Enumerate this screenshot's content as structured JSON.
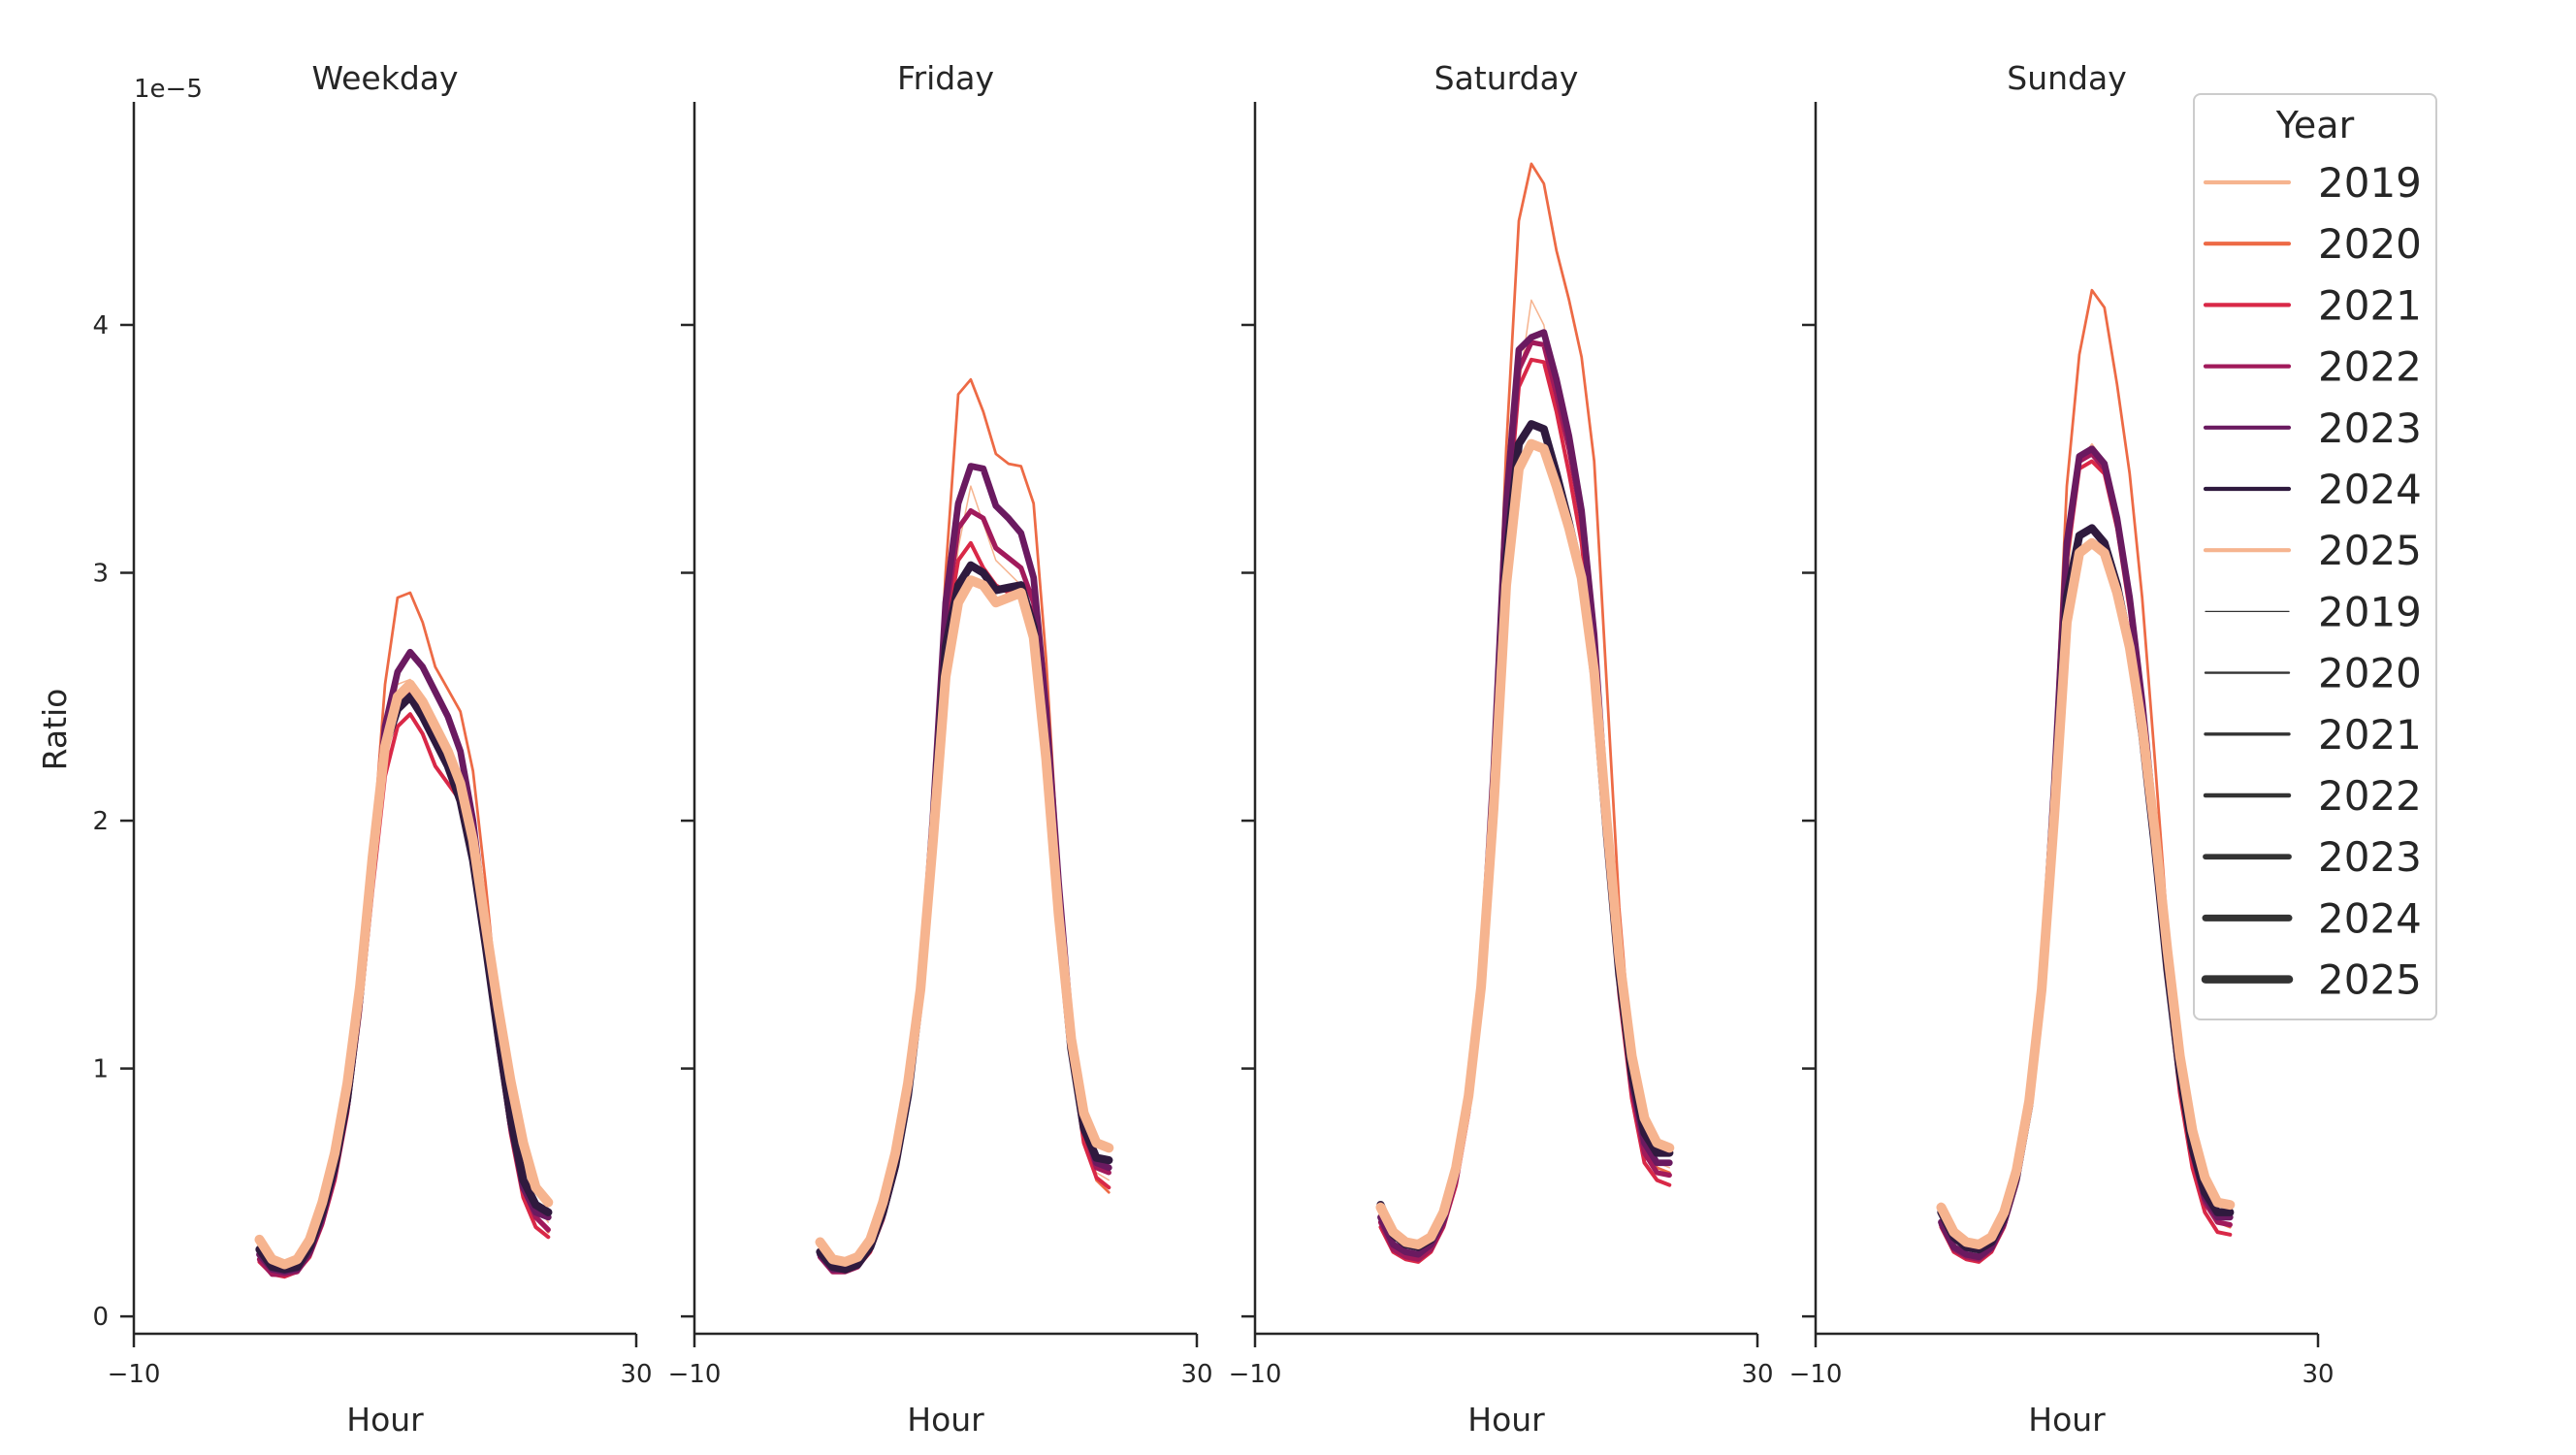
{
  "chart_data": {
    "type": "line",
    "ylabel": "Ratio",
    "xlabel": "Hour",
    "y_offset_label": "1e−5",
    "y_scale": 1e-05,
    "xlim": [
      -10,
      30
    ],
    "ylim": [
      -0.07,
      4.9
    ],
    "xticks": [
      -10,
      30
    ],
    "xtick_labels": [
      "−10",
      "30"
    ],
    "yticks": [
      0,
      1,
      2,
      3,
      4
    ],
    "ytick_labels": [
      "0",
      "1",
      "2",
      "3",
      "4"
    ],
    "hours": [
      0,
      1,
      2,
      3,
      4,
      5,
      6,
      7,
      8,
      9,
      10,
      11,
      12,
      13,
      14,
      15,
      16,
      17,
      18,
      19,
      20,
      21,
      22,
      23
    ],
    "legend": {
      "title": "Year",
      "placement": "right",
      "color_entries": [
        {
          "label": "2019",
          "color": "#f6b48f"
        },
        {
          "label": "2020",
          "color": "#ed6a45"
        },
        {
          "label": "2021",
          "color": "#d92847"
        },
        {
          "label": "2022",
          "color": "#a11a5b"
        },
        {
          "label": "2023",
          "color": "#6a1a60"
        },
        {
          "label": "2024",
          "color": "#2f1a3e"
        },
        {
          "label": "2025",
          "color": "#f6b48f"
        }
      ],
      "size_entries": [
        {
          "label": "2019",
          "width": 1.2
        },
        {
          "label": "2020",
          "width": 2.2
        },
        {
          "label": "2021",
          "width": 3.2
        },
        {
          "label": "2022",
          "width": 4.2
        },
        {
          "label": "2023",
          "width": 5.4
        },
        {
          "label": "2024",
          "width": 6.6
        },
        {
          "label": "2025",
          "width": 8.0
        }
      ]
    },
    "panels": [
      {
        "title": "Weekday",
        "series": [
          {
            "name": "2019",
            "color": "#f6b48f",
            "width": 1.2,
            "values": [
              0.3,
              0.22,
              0.2,
              0.22,
              0.3,
              0.45,
              0.65,
              0.92,
              1.3,
              1.8,
              2.28,
              2.55,
              2.57,
              2.5,
              2.4,
              2.3,
              2.15,
              1.9,
              1.55,
              1.2,
              0.9,
              0.62,
              0.45,
              0.38
            ]
          },
          {
            "name": "2020",
            "color": "#ed6a45",
            "width": 2.2,
            "values": [
              0.26,
              0.19,
              0.18,
              0.2,
              0.27,
              0.41,
              0.6,
              0.88,
              1.28,
              1.88,
              2.55,
              2.9,
              2.92,
              2.8,
              2.62,
              2.53,
              2.44,
              2.2,
              1.75,
              1.25,
              0.85,
              0.55,
              0.4,
              0.34
            ]
          },
          {
            "name": "2021",
            "color": "#d92847",
            "width": 3.2,
            "values": [
              0.22,
              0.17,
              0.16,
              0.18,
              0.24,
              0.37,
              0.55,
              0.82,
              1.22,
              1.72,
              2.18,
              2.38,
              2.43,
              2.35,
              2.22,
              2.15,
              2.08,
              1.88,
              1.5,
              1.1,
              0.74,
              0.48,
              0.36,
              0.32
            ]
          },
          {
            "name": "2022",
            "color": "#a11a5b",
            "width": 4.2,
            "values": [
              0.23,
              0.17,
              0.17,
              0.18,
              0.25,
              0.38,
              0.57,
              0.84,
              1.25,
              1.78,
              2.28,
              2.48,
              2.52,
              2.45,
              2.35,
              2.25,
              2.12,
              1.88,
              1.5,
              1.1,
              0.76,
              0.52,
              0.4,
              0.35
            ]
          },
          {
            "name": "2023",
            "color": "#6a1a60",
            "width": 5.4,
            "values": [
              0.25,
              0.19,
              0.18,
              0.19,
              0.26,
              0.4,
              0.59,
              0.86,
              1.28,
              1.83,
              2.38,
              2.6,
              2.68,
              2.62,
              2.52,
              2.42,
              2.28,
              2.0,
              1.58,
              1.14,
              0.78,
              0.52,
              0.42,
              0.4
            ]
          },
          {
            "name": "2024",
            "color": "#2f1a3e",
            "width": 6.6,
            "values": [
              0.27,
              0.2,
              0.19,
              0.2,
              0.28,
              0.42,
              0.61,
              0.88,
              1.3,
              1.82,
              2.3,
              2.45,
              2.5,
              2.42,
              2.32,
              2.22,
              2.08,
              1.84,
              1.5,
              1.14,
              0.8,
              0.55,
              0.45,
              0.42
            ]
          },
          {
            "name": "2025",
            "color": "#f6b48f",
            "width": 8.0,
            "values": [
              0.31,
              0.23,
              0.21,
              0.23,
              0.31,
              0.46,
              0.66,
              0.94,
              1.33,
              1.85,
              2.3,
              2.5,
              2.55,
              2.48,
              2.38,
              2.28,
              2.15,
              1.92,
              1.58,
              1.25,
              0.95,
              0.7,
              0.52,
              0.46
            ]
          }
        ]
      },
      {
        "title": "Friday",
        "series": [
          {
            "name": "2019",
            "color": "#f6b48f",
            "width": 1.2,
            "values": [
              0.3,
              0.22,
              0.21,
              0.23,
              0.3,
              0.45,
              0.65,
              0.92,
              1.3,
              1.9,
              2.6,
              3.1,
              3.35,
              3.2,
              3.05,
              3.0,
              2.95,
              2.7,
              2.2,
              1.55,
              1.05,
              0.7,
              0.58,
              0.55
            ]
          },
          {
            "name": "2020",
            "color": "#ed6a45",
            "width": 2.2,
            "values": [
              0.27,
              0.2,
              0.19,
              0.21,
              0.28,
              0.42,
              0.62,
              0.9,
              1.32,
              2.05,
              3.0,
              3.72,
              3.78,
              3.65,
              3.48,
              3.44,
              3.43,
              3.28,
              2.65,
              1.82,
              1.15,
              0.75,
              0.55,
              0.5
            ]
          },
          {
            "name": "2021",
            "color": "#d92847",
            "width": 3.2,
            "values": [
              0.24,
              0.18,
              0.18,
              0.2,
              0.26,
              0.39,
              0.58,
              0.86,
              1.28,
              1.95,
              2.75,
              3.05,
              3.12,
              3.02,
              2.95,
              2.92,
              2.95,
              2.8,
              2.3,
              1.62,
              1.05,
              0.7,
              0.56,
              0.52
            ]
          },
          {
            "name": "2022",
            "color": "#a11a5b",
            "width": 4.2,
            "values": [
              0.24,
              0.18,
              0.18,
              0.2,
              0.27,
              0.4,
              0.59,
              0.87,
              1.3,
              1.98,
              2.82,
              3.18,
              3.25,
              3.22,
              3.1,
              3.06,
              3.02,
              2.88,
              2.38,
              1.7,
              1.1,
              0.75,
              0.6,
              0.58
            ]
          },
          {
            "name": "2023",
            "color": "#6a1a60",
            "width": 5.4,
            "values": [
              0.25,
              0.19,
              0.19,
              0.21,
              0.28,
              0.41,
              0.6,
              0.88,
              1.32,
              2.02,
              2.88,
              3.28,
              3.43,
              3.42,
              3.27,
              3.22,
              3.16,
              2.98,
              2.45,
              1.75,
              1.15,
              0.78,
              0.62,
              0.6
            ]
          },
          {
            "name": "2024",
            "color": "#2f1a3e",
            "width": 6.6,
            "values": [
              0.26,
              0.2,
              0.19,
              0.21,
              0.28,
              0.42,
              0.61,
              0.89,
              1.31,
              1.96,
              2.7,
              2.95,
              3.03,
              3.0,
              2.93,
              2.94,
              2.95,
              2.78,
              2.28,
              1.62,
              1.08,
              0.76,
              0.64,
              0.63
            ]
          },
          {
            "name": "2025",
            "color": "#f6b48f",
            "width": 8.0,
            "values": [
              0.3,
              0.23,
              0.22,
              0.24,
              0.31,
              0.46,
              0.66,
              0.94,
              1.32,
              1.92,
              2.58,
              2.88,
              2.97,
              2.95,
              2.88,
              2.9,
              2.92,
              2.74,
              2.25,
              1.62,
              1.12,
              0.82,
              0.7,
              0.68
            ]
          }
        ]
      },
      {
        "title": "Saturday",
        "series": [
          {
            "name": "2019",
            "color": "#f6b48f",
            "width": 1.2,
            "values": [
              0.42,
              0.32,
              0.28,
              0.28,
              0.32,
              0.42,
              0.6,
              0.9,
              1.35,
              2.1,
              3.1,
              3.75,
              4.1,
              4.0,
              3.7,
              3.4,
              3.1,
              2.6,
              1.95,
              1.35,
              0.95,
              0.72,
              0.62,
              0.6
            ]
          },
          {
            "name": "2020",
            "color": "#ed6a45",
            "width": 2.2,
            "values": [
              0.38,
              0.28,
              0.25,
              0.24,
              0.28,
              0.38,
              0.56,
              0.86,
              1.35,
              2.25,
              3.5,
              4.42,
              4.65,
              4.57,
              4.3,
              4.1,
              3.87,
              3.45,
              2.55,
              1.65,
              1.05,
              0.72,
              0.6,
              0.58
            ]
          },
          {
            "name": "2021",
            "color": "#d92847",
            "width": 3.2,
            "values": [
              0.36,
              0.26,
              0.23,
              0.22,
              0.26,
              0.36,
              0.53,
              0.82,
              1.3,
              2.1,
              3.15,
              3.75,
              3.86,
              3.85,
              3.65,
              3.4,
              3.12,
              2.65,
              1.95,
              1.3,
              0.88,
              0.62,
              0.55,
              0.53
            ]
          },
          {
            "name": "2022",
            "color": "#a11a5b",
            "width": 4.2,
            "values": [
              0.38,
              0.27,
              0.24,
              0.23,
              0.27,
              0.37,
              0.55,
              0.84,
              1.32,
              2.15,
              3.22,
              3.82,
              3.93,
              3.92,
              3.72,
              3.5,
              3.22,
              2.72,
              2.0,
              1.35,
              0.92,
              0.66,
              0.58,
              0.57
            ]
          },
          {
            "name": "2023",
            "color": "#6a1a60",
            "width": 5.4,
            "values": [
              0.4,
              0.29,
              0.26,
              0.25,
              0.29,
              0.39,
              0.57,
              0.86,
              1.35,
              2.2,
              3.28,
              3.9,
              3.95,
              3.97,
              3.78,
              3.55,
              3.25,
              2.75,
              2.02,
              1.38,
              0.95,
              0.7,
              0.62,
              0.62
            ]
          },
          {
            "name": "2024",
            "color": "#2f1a3e",
            "width": 6.6,
            "values": [
              0.45,
              0.33,
              0.29,
              0.28,
              0.31,
              0.41,
              0.59,
              0.88,
              1.34,
              2.1,
              3.05,
              3.52,
              3.6,
              3.58,
              3.4,
              3.2,
              2.98,
              2.58,
              1.95,
              1.38,
              0.98,
              0.74,
              0.66,
              0.66
            ]
          },
          {
            "name": "2025",
            "color": "#f6b48f",
            "width": 8.0,
            "values": [
              0.44,
              0.34,
              0.3,
              0.29,
              0.32,
              0.42,
              0.6,
              0.89,
              1.33,
              2.05,
              2.95,
              3.42,
              3.52,
              3.5,
              3.35,
              3.18,
              2.98,
              2.6,
              2.0,
              1.45,
              1.05,
              0.8,
              0.7,
              0.68
            ]
          }
        ]
      },
      {
        "title": "Sunday",
        "series": [
          {
            "name": "2019",
            "color": "#f6b48f",
            "width": 1.2,
            "values": [
              0.44,
              0.33,
              0.28,
              0.27,
              0.31,
              0.41,
              0.58,
              0.86,
              1.32,
              2.05,
              2.95,
              3.45,
              3.52,
              3.45,
              3.25,
              2.95,
              2.55,
              2.05,
              1.5,
              1.05,
              0.72,
              0.52,
              0.42,
              0.4
            ]
          },
          {
            "name": "2020",
            "color": "#ed6a45",
            "width": 2.2,
            "values": [
              0.4,
              0.29,
              0.25,
              0.24,
              0.28,
              0.38,
              0.55,
              0.84,
              1.35,
              2.25,
              3.35,
              3.88,
              4.14,
              4.07,
              3.76,
              3.4,
              2.9,
              2.25,
              1.58,
              1.05,
              0.7,
              0.48,
              0.38,
              0.36
            ]
          },
          {
            "name": "2021",
            "color": "#d92847",
            "width": 3.2,
            "values": [
              0.36,
              0.26,
              0.23,
              0.22,
              0.26,
              0.36,
              0.53,
              0.82,
              1.3,
              2.1,
              3.05,
              3.42,
              3.45,
              3.4,
              3.18,
              2.85,
              2.42,
              1.9,
              1.35,
              0.9,
              0.6,
              0.42,
              0.34,
              0.33
            ]
          },
          {
            "name": "2022",
            "color": "#a11a5b",
            "width": 4.2,
            "values": [
              0.37,
              0.27,
              0.24,
              0.23,
              0.27,
              0.37,
              0.54,
              0.83,
              1.32,
              2.12,
              3.08,
              3.45,
              3.48,
              3.42,
              3.2,
              2.88,
              2.45,
              1.95,
              1.4,
              0.95,
              0.65,
              0.46,
              0.38,
              0.37
            ]
          },
          {
            "name": "2023",
            "color": "#6a1a60",
            "width": 5.4,
            "values": [
              0.38,
              0.28,
              0.25,
              0.24,
              0.28,
              0.38,
              0.55,
              0.84,
              1.33,
              2.15,
              3.12,
              3.47,
              3.5,
              3.44,
              3.22,
              2.9,
              2.48,
              1.98,
              1.42,
              0.97,
              0.67,
              0.48,
              0.4,
              0.4
            ]
          },
          {
            "name": "2024",
            "color": "#2f1a3e",
            "width": 6.6,
            "values": [
              0.42,
              0.32,
              0.28,
              0.27,
              0.3,
              0.4,
              0.57,
              0.85,
              1.32,
              2.08,
              2.9,
              3.15,
              3.18,
              3.12,
              2.95,
              2.7,
              2.35,
              1.9,
              1.4,
              0.98,
              0.68,
              0.5,
              0.42,
              0.42
            ]
          },
          {
            "name": "2025",
            "color": "#f6b48f",
            "width": 8.0,
            "values": [
              0.44,
              0.34,
              0.3,
              0.29,
              0.32,
              0.42,
              0.59,
              0.87,
              1.32,
              2.02,
              2.8,
              3.08,
              3.12,
              3.08,
              2.92,
              2.7,
              2.38,
              1.96,
              1.48,
              1.05,
              0.75,
              0.56,
              0.46,
              0.45
            ]
          }
        ]
      }
    ]
  }
}
